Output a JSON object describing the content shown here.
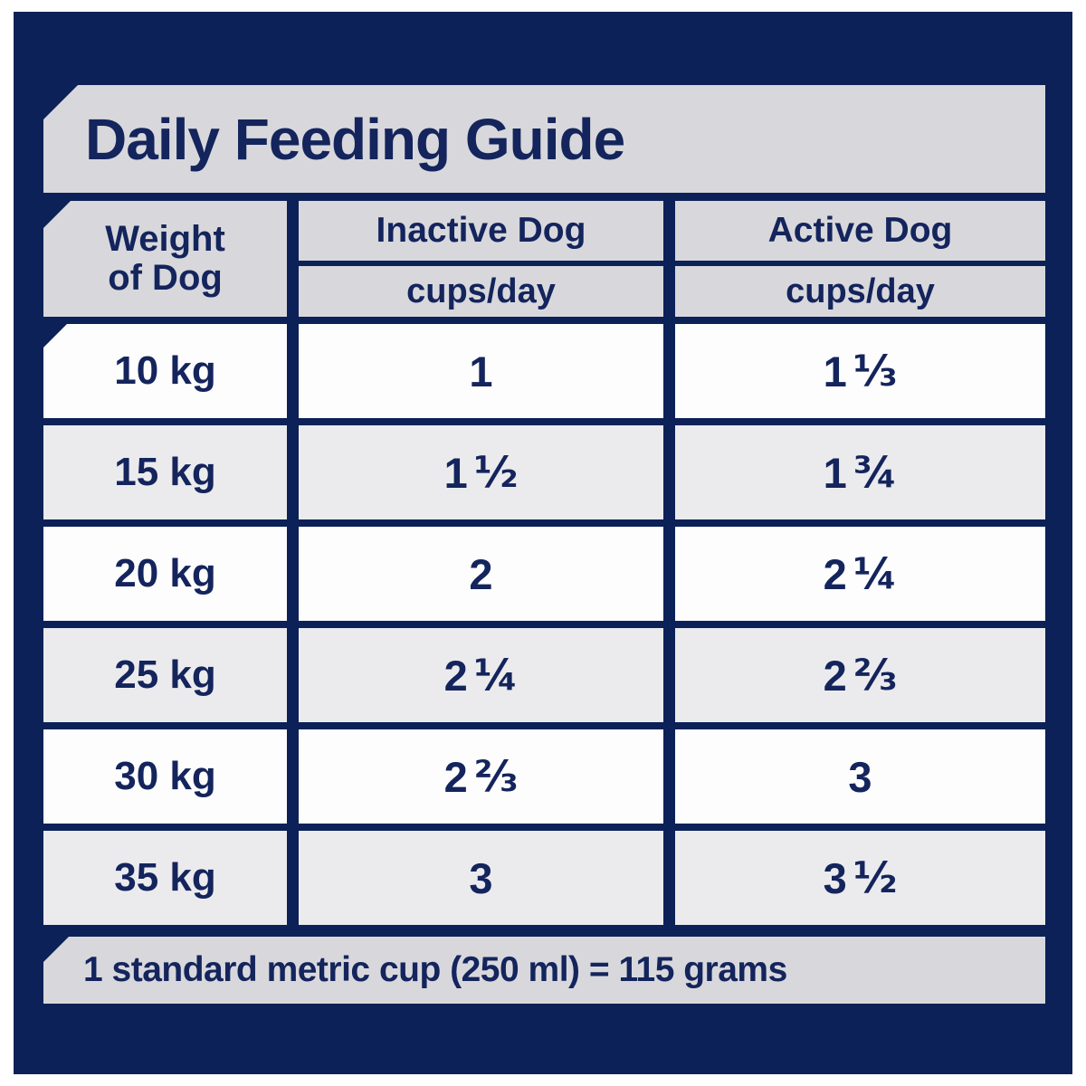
{
  "title": "Daily Feeding Guide",
  "table": {
    "weight_header": {
      "line1": "Weight",
      "line2": "of Dog"
    },
    "columns": [
      {
        "label": "Inactive Dog",
        "sub": "cups/day"
      },
      {
        "label": "Active Dog",
        "sub": "cups/day"
      }
    ],
    "rows": [
      {
        "weight": "10 kg",
        "inactive": {
          "whole": "1",
          "frac": ""
        },
        "active": {
          "whole": "1",
          "frac": "⅓"
        }
      },
      {
        "weight": "15 kg",
        "inactive": {
          "whole": "1",
          "frac": "½"
        },
        "active": {
          "whole": "1",
          "frac": "¾"
        }
      },
      {
        "weight": "20 kg",
        "inactive": {
          "whole": "2",
          "frac": ""
        },
        "active": {
          "whole": "2",
          "frac": "¼"
        }
      },
      {
        "weight": "25 kg",
        "inactive": {
          "whole": "2",
          "frac": "¼"
        },
        "active": {
          "whole": "2",
          "frac": "⅔"
        }
      },
      {
        "weight": "30 kg",
        "inactive": {
          "whole": "2",
          "frac": "⅔"
        },
        "active": {
          "whole": "3",
          "frac": ""
        }
      },
      {
        "weight": "35 kg",
        "inactive": {
          "whole": "3",
          "frac": ""
        },
        "active": {
          "whole": "3",
          "frac": "½"
        }
      }
    ]
  },
  "footnote": "1 standard metric cup (250 ml) = 115 grams",
  "colors": {
    "background_navy": "#0c2157",
    "panel_gray": "#d8d8dc",
    "row_white": "#fdfdfd",
    "row_gray": "#ebebee",
    "text_navy": "#14245c",
    "page_margin": "#ffffff"
  },
  "chart_data": {
    "type": "table",
    "title": "Daily Feeding Guide",
    "columns": [
      "Weight of Dog",
      "Inactive Dog (cups/day)",
      "Active Dog (cups/day)"
    ],
    "rows": [
      [
        "10 kg",
        "1",
        "1 ⅓"
      ],
      [
        "15 kg",
        "1 ½",
        "1 ¾"
      ],
      [
        "20 kg",
        "2",
        "2 ¼"
      ],
      [
        "25 kg",
        "2 ¼",
        "2 ⅔"
      ],
      [
        "30 kg",
        "2 ⅔",
        "3"
      ],
      [
        "35 kg",
        "3",
        "3 ½"
      ]
    ],
    "footnote": "1 standard metric cup (250 ml) = 115 grams"
  }
}
